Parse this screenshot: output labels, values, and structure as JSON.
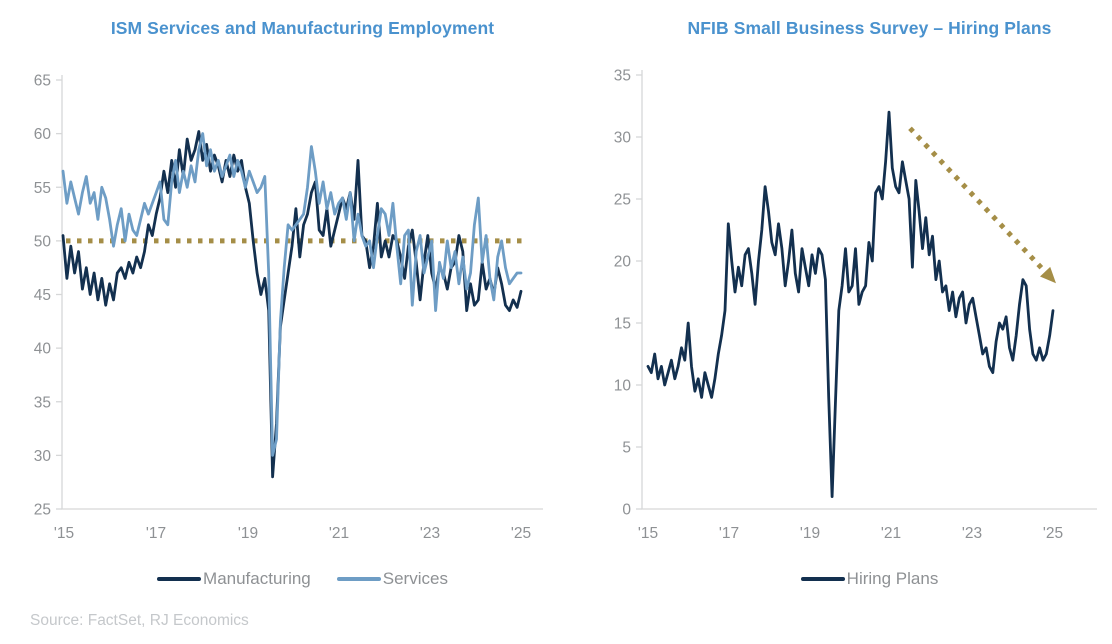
{
  "page": {
    "source_note": "Source: FactSet, RJ Economics"
  },
  "colors": {
    "navy": "#13304F",
    "light_blue": "#6E9DC5",
    "khaki": "#A58E47",
    "title_blue": "#4A92CE",
    "tick_label_gray": "#8E9194",
    "legend_text_gray": "#8E9194",
    "source_gray": "#C5C8CB",
    "axis_gray": "#D6D7D8"
  },
  "chart_data": [
    {
      "type": "line",
      "title": "ISM Services and Manufacturing Employment",
      "xlabel": "",
      "ylabel": "",
      "ylim": [
        25,
        65
      ],
      "grid": false,
      "legend_position": "bottom",
      "y_ticks": [
        65,
        60,
        55,
        50,
        45,
        40,
        35,
        30,
        25
      ],
      "x_tick_labels": [
        "'15",
        "'17",
        "'19",
        "'21",
        "'23",
        "'25"
      ],
      "reference_line": {
        "value": 50,
        "style": "dotted",
        "color_key": "khaki"
      },
      "series": [
        {
          "name": "Manufacturing",
          "color_key": "navy",
          "values": [
            50.5,
            46.5,
            49.5,
            47,
            49,
            45.5,
            47.5,
            45,
            47,
            44.5,
            46.5,
            44,
            46,
            44.5,
            47,
            47.5,
            46.5,
            48,
            47,
            48.5,
            47.5,
            49,
            51.5,
            50.5,
            52.5,
            54,
            56.5,
            54.5,
            57.5,
            55,
            58.5,
            56,
            59.5,
            57.5,
            58.5,
            60.2,
            57.5,
            59,
            56.5,
            58,
            57,
            55.5,
            57.5,
            56,
            58,
            56.5,
            57.5,
            55,
            53.5,
            50,
            47,
            45,
            46.5,
            43.5,
            28,
            33,
            42,
            44.5,
            47,
            49.5,
            53,
            48.5,
            51.5,
            52.5,
            54.5,
            55.5,
            51,
            50.5,
            53,
            49.5,
            51,
            52.5,
            54,
            53,
            54.5,
            52,
            57.5,
            50.5,
            50,
            47.5,
            49.5,
            53.5,
            48.5,
            50,
            48.5,
            50.5,
            50,
            48.5,
            46.5,
            49.5,
            51,
            48,
            44.5,
            48,
            50.5,
            47,
            45.5,
            47.5,
            47,
            45.5,
            47.5,
            48,
            50.5,
            49,
            43.5,
            46,
            44,
            44.5,
            48,
            45.5,
            46.5,
            45,
            47.5,
            46,
            44,
            43.5,
            44.5,
            43.8,
            45.3
          ]
        },
        {
          "name": "Services",
          "color_key": "light_blue",
          "values": [
            56.5,
            53.5,
            55.5,
            54,
            52.5,
            54.5,
            56,
            53.5,
            54.5,
            52,
            55,
            54,
            52,
            49.5,
            51.5,
            53,
            50,
            52.5,
            51,
            50.5,
            52,
            53.5,
            52.5,
            53.5,
            54.5,
            55.5,
            52,
            51.5,
            55.5,
            57.5,
            54.5,
            56.5,
            55,
            57,
            55.5,
            58.5,
            60,
            57,
            58.5,
            56.5,
            57.5,
            56,
            57,
            58,
            56,
            57.5,
            56.5,
            55,
            56.5,
            55.5,
            54.5,
            55,
            56,
            47,
            30,
            31.5,
            42.5,
            47.5,
            51.5,
            51,
            51.5,
            52,
            52.5,
            55,
            58.8,
            56.5,
            53.5,
            55.5,
            53,
            54.5,
            52.5,
            53.5,
            54,
            52,
            54.5,
            50,
            52.5,
            50.5,
            49.5,
            50,
            47.5,
            50.5,
            53,
            52.5,
            50.5,
            53.5,
            49.5,
            46,
            50.5,
            51,
            44,
            49,
            50.5,
            47,
            48.5,
            50,
            43.5,
            48,
            46.5,
            50,
            47.5,
            49,
            46,
            48.5,
            45.5,
            47,
            51.5,
            54,
            48,
            50.5,
            46.5,
            44.5,
            48.5,
            50,
            47.5,
            46,
            46.5,
            47,
            47
          ]
        }
      ]
    },
    {
      "type": "line",
      "title": "NFIB Small Business Survey – Hiring Plans",
      "xlabel": "",
      "ylabel": "",
      "ylim": [
        0,
        35
      ],
      "grid": false,
      "legend_position": "bottom",
      "y_ticks": [
        35,
        30,
        25,
        20,
        15,
        10,
        5,
        0
      ],
      "x_tick_labels": [
        "'15",
        "'17",
        "'19",
        "'21",
        "'23",
        "'25"
      ],
      "annotation_arrow": {
        "style": "dotted",
        "color_key": "khaki",
        "x_frac_start": 0.589,
        "value_start": 30.7,
        "x_frac_end": 0.91,
        "value_end": 18.2
      },
      "series": [
        {
          "name": "Hiring Plans",
          "color_key": "navy",
          "values": [
            11.5,
            11,
            12.5,
            10.5,
            11.5,
            10,
            11,
            12,
            10.5,
            11.5,
            13,
            12,
            15,
            11.5,
            9.5,
            10.5,
            9,
            11,
            10,
            9,
            10.5,
            12.5,
            14,
            16,
            23,
            20,
            17.5,
            19.5,
            18,
            20.5,
            21,
            19,
            16.5,
            20,
            22.5,
            26,
            24,
            21.5,
            20.5,
            23,
            21,
            18,
            20,
            22.5,
            19,
            17.5,
            21,
            19.5,
            18,
            20.5,
            19,
            21,
            20.5,
            18.5,
            9,
            1,
            8.5,
            16,
            18,
            21,
            17.5,
            18,
            21,
            16.5,
            17.5,
            18,
            21.5,
            20,
            25.5,
            26,
            25,
            28,
            32,
            27.5,
            26,
            25.5,
            28,
            26.5,
            25,
            19.5,
            26.5,
            24,
            21,
            23.5,
            20.5,
            22,
            18.5,
            20,
            17.5,
            18,
            16,
            17.5,
            15.5,
            17,
            17.5,
            15,
            16.5,
            17,
            15.5,
            14,
            12.5,
            13,
            11.5,
            11,
            13.5,
            15,
            14.5,
            15.5,
            13,
            12,
            14,
            16.5,
            18.5,
            18,
            14.5,
            12.5,
            12,
            13,
            12,
            12.5,
            14,
            16
          ]
        }
      ]
    }
  ]
}
